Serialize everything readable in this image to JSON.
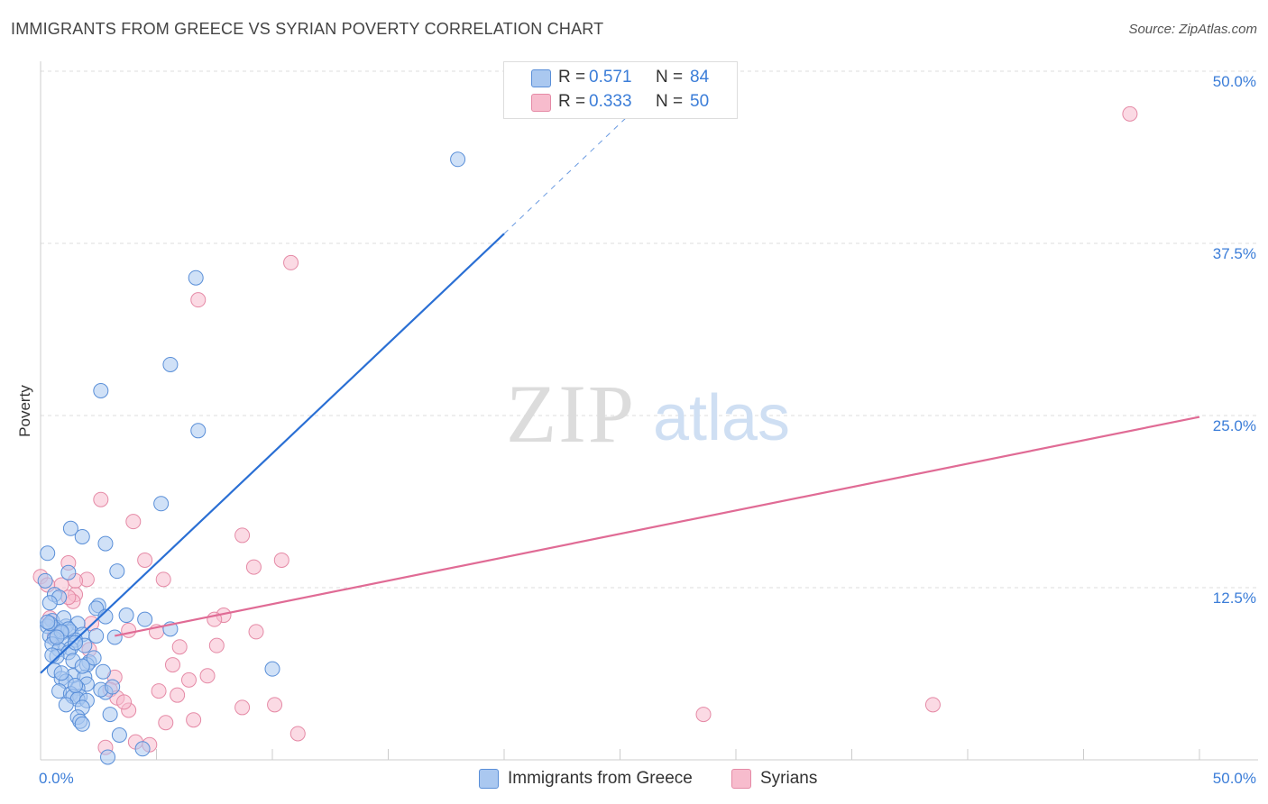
{
  "title": "IMMIGRANTS FROM GREECE VS SYRIAN POVERTY CORRELATION CHART",
  "source": "Source: ZipAtlas.com",
  "watermark": {
    "zip": "ZIP",
    "atlas": "atlas"
  },
  "legend": {
    "series1": {
      "r_label": "R =",
      "r_value": "0.571",
      "n_label": "N =",
      "n_value": "84"
    },
    "series2": {
      "r_label": "R =",
      "r_value": "0.333",
      "n_label": "N =",
      "n_value": "50"
    }
  },
  "bottom_legend": {
    "series1": "Immigrants from Greece",
    "series2": "Syrians"
  },
  "colors": {
    "blue_fill": "#aac8f0",
    "blue_stroke": "#5a8fd8",
    "blue_line": "#2a6fd4",
    "pink_fill": "#f7bccd",
    "pink_stroke": "#e58aa6",
    "pink_line": "#e06b95",
    "tick_text": "#3b7dd8",
    "grid": "#dddddd"
  },
  "chart_data": {
    "type": "scatter",
    "title": "IMMIGRANTS FROM GREECE VS SYRIAN POVERTY CORRELATION CHART",
    "xlabel": "",
    "ylabel": "Poverty",
    "xlim": [
      0,
      50
    ],
    "ylim": [
      0,
      50
    ],
    "x_tick_labels": [
      "0.0%",
      "50.0%"
    ],
    "y_ticks": [
      12.5,
      25.0,
      37.5,
      50.0
    ],
    "y_tick_labels": [
      "12.5%",
      "25.0%",
      "37.5%",
      "50.0%"
    ],
    "series": [
      {
        "name": "Immigrants from Greece",
        "r": 0.571,
        "n": 84,
        "trend": {
          "x0": 0,
          "y0": 6.3,
          "x1": 20,
          "y1": 38.2,
          "dash_x1": 26,
          "dash_y1": 47.8
        },
        "points": [
          [
            18,
            43.6
          ],
          [
            6.7,
            35.0
          ],
          [
            5.6,
            28.7
          ],
          [
            2.6,
            26.8
          ],
          [
            6.8,
            23.9
          ],
          [
            5.2,
            18.6
          ],
          [
            1.3,
            16.8
          ],
          [
            1.8,
            16.2
          ],
          [
            2.8,
            15.7
          ],
          [
            0.3,
            15.0
          ],
          [
            3.3,
            13.7
          ],
          [
            1.2,
            13.6
          ],
          [
            0.2,
            13.0
          ],
          [
            0.6,
            12.0
          ],
          [
            0.8,
            11.8
          ],
          [
            0.4,
            11.4
          ],
          [
            2.5,
            11.2
          ],
          [
            2.4,
            11.0
          ],
          [
            3.7,
            10.5
          ],
          [
            2.8,
            10.4
          ],
          [
            0.5,
            10.1
          ],
          [
            4.5,
            10.2
          ],
          [
            1.6,
            9.9
          ],
          [
            1.1,
            9.7
          ],
          [
            0.7,
            9.6
          ],
          [
            0.3,
            9.7
          ],
          [
            5.6,
            9.5
          ],
          [
            1.3,
            9.3
          ],
          [
            0.9,
            9.2
          ],
          [
            0.4,
            9.0
          ],
          [
            1.8,
            9.1
          ],
          [
            2.4,
            9.0
          ],
          [
            3.2,
            8.9
          ],
          [
            0.6,
            8.8
          ],
          [
            1.5,
            8.7
          ],
          [
            1.0,
            8.5
          ],
          [
            1.9,
            8.3
          ],
          [
            0.5,
            8.4
          ],
          [
            1.3,
            8.1
          ],
          [
            0.8,
            8.0
          ],
          [
            1.2,
            7.8
          ],
          [
            0.7,
            7.5
          ],
          [
            2.1,
            7.1
          ],
          [
            2.0,
            6.9
          ],
          [
            0.6,
            6.5
          ],
          [
            1.4,
            6.1
          ],
          [
            2.7,
            6.4
          ],
          [
            1.9,
            6.0
          ],
          [
            0.9,
            5.9
          ],
          [
            1.1,
            5.7
          ],
          [
            2.0,
            5.5
          ],
          [
            1.6,
            5.2
          ],
          [
            0.8,
            5.0
          ],
          [
            1.3,
            4.8
          ],
          [
            1.7,
            4.6
          ],
          [
            2.8,
            4.9
          ],
          [
            1.4,
            4.6
          ],
          [
            1.6,
            4.4
          ],
          [
            2.0,
            4.3
          ],
          [
            1.1,
            4.0
          ],
          [
            1.8,
            3.8
          ],
          [
            3.0,
            3.3
          ],
          [
            1.6,
            3.1
          ],
          [
            1.7,
            2.8
          ],
          [
            1.8,
            2.6
          ],
          [
            3.4,
            1.8
          ],
          [
            4.4,
            0.8
          ],
          [
            2.9,
            0.2
          ],
          [
            10.0,
            6.6
          ],
          [
            1.0,
            10.3
          ],
          [
            0.4,
            9.9
          ],
          [
            1.2,
            9.5
          ],
          [
            0.9,
            9.3
          ],
          [
            0.7,
            8.9
          ],
          [
            1.5,
            8.5
          ],
          [
            0.3,
            10.0
          ],
          [
            1.4,
            7.2
          ],
          [
            2.3,
            7.4
          ],
          [
            0.5,
            7.6
          ],
          [
            1.8,
            6.8
          ],
          [
            0.9,
            6.3
          ],
          [
            1.5,
            5.4
          ],
          [
            2.6,
            5.1
          ],
          [
            3.1,
            5.3
          ]
        ]
      },
      {
        "name": "Syrians",
        "r": 0.333,
        "n": 50,
        "trend": {
          "x0": 3.2,
          "y0": 9.0,
          "x1": 50,
          "y1": 24.9
        },
        "points": [
          [
            47,
            46.9
          ],
          [
            10.8,
            36.1
          ],
          [
            6.8,
            33.4
          ],
          [
            2.6,
            18.9
          ],
          [
            4.0,
            17.3
          ],
          [
            8.7,
            16.3
          ],
          [
            10.4,
            14.5
          ],
          [
            9.2,
            14.0
          ],
          [
            4.5,
            14.5
          ],
          [
            1.2,
            14.3
          ],
          [
            0.0,
            13.3
          ],
          [
            5.3,
            13.1
          ],
          [
            2.0,
            13.1
          ],
          [
            0.9,
            12.7
          ],
          [
            1.5,
            12.0
          ],
          [
            1.4,
            11.5
          ],
          [
            7.9,
            10.5
          ],
          [
            7.5,
            10.2
          ],
          [
            0.4,
            10.3
          ],
          [
            2.2,
            9.9
          ],
          [
            3.8,
            9.4
          ],
          [
            9.3,
            9.3
          ],
          [
            5.0,
            9.3
          ],
          [
            0.6,
            9.0
          ],
          [
            6.0,
            8.2
          ],
          [
            7.6,
            8.3
          ],
          [
            2.1,
            8.0
          ],
          [
            5.7,
            6.9
          ],
          [
            7.2,
            6.1
          ],
          [
            6.4,
            5.8
          ],
          [
            3.2,
            6.0
          ],
          [
            3.0,
            5.1
          ],
          [
            5.1,
            5.0
          ],
          [
            5.9,
            4.7
          ],
          [
            3.3,
            4.5
          ],
          [
            8.7,
            3.8
          ],
          [
            10.1,
            4.0
          ],
          [
            3.8,
            3.6
          ],
          [
            6.6,
            2.9
          ],
          [
            5.4,
            2.7
          ],
          [
            11.1,
            1.9
          ],
          [
            4.1,
            1.3
          ],
          [
            4.7,
            1.1
          ],
          [
            2.8,
            0.9
          ],
          [
            3.6,
            4.2
          ],
          [
            28.6,
            3.3
          ],
          [
            38.5,
            4.0
          ],
          [
            1.5,
            13.0
          ],
          [
            1.2,
            11.8
          ],
          [
            0.3,
            12.7
          ]
        ]
      }
    ]
  }
}
